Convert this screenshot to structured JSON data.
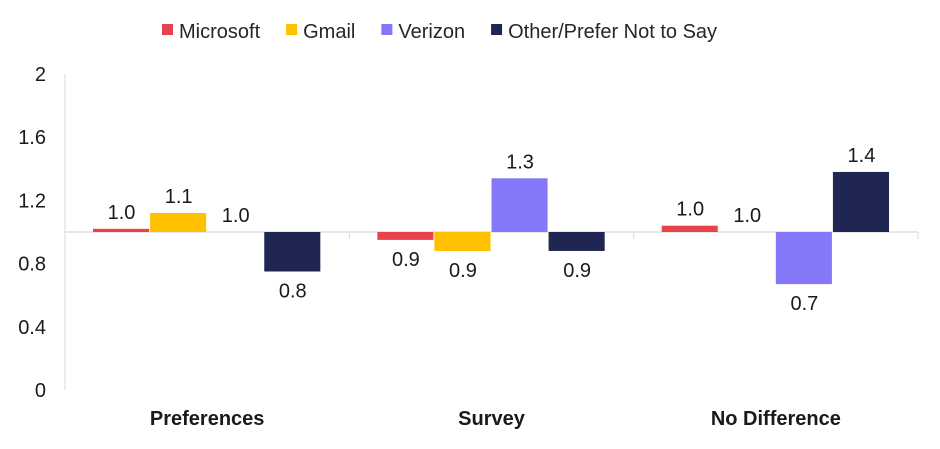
{
  "chart_data": {
    "type": "bar",
    "title": "",
    "xlabel": "",
    "ylabel": "",
    "ylim": [
      0,
      2
    ],
    "baseline": 1,
    "yticks": [
      "0",
      "0.4",
      "0.8",
      "1.2",
      "1.6",
      "2"
    ],
    "ytick_values": [
      0,
      0.4,
      0.8,
      1.2,
      1.6,
      2
    ],
    "legend_position": "top",
    "grid": false,
    "categories": [
      "Preferences",
      "Survey",
      "No Difference"
    ],
    "series": [
      {
        "name": "Microsoft",
        "color": "#e8434d",
        "values": [
          1.02,
          0.95,
          1.04
        ],
        "labels": [
          "1.0",
          "0.9",
          "1.0"
        ]
      },
      {
        "name": "Gmail",
        "color": "#ffc000",
        "values": [
          1.12,
          0.88,
          1.0
        ],
        "labels": [
          "1.1",
          "0.9",
          "1.0"
        ]
      },
      {
        "name": "Verizon",
        "color": "#8477f8",
        "values": [
          1.0,
          1.34,
          0.67
        ],
        "labels": [
          "1.0",
          "1.3",
          "0.7"
        ]
      },
      {
        "name": "Other/Prefer Not to Say",
        "color": "#1f2652",
        "values": [
          0.75,
          0.88,
          1.38
        ],
        "labels": [
          "0.8",
          "0.9",
          "1.4"
        ]
      }
    ]
  }
}
